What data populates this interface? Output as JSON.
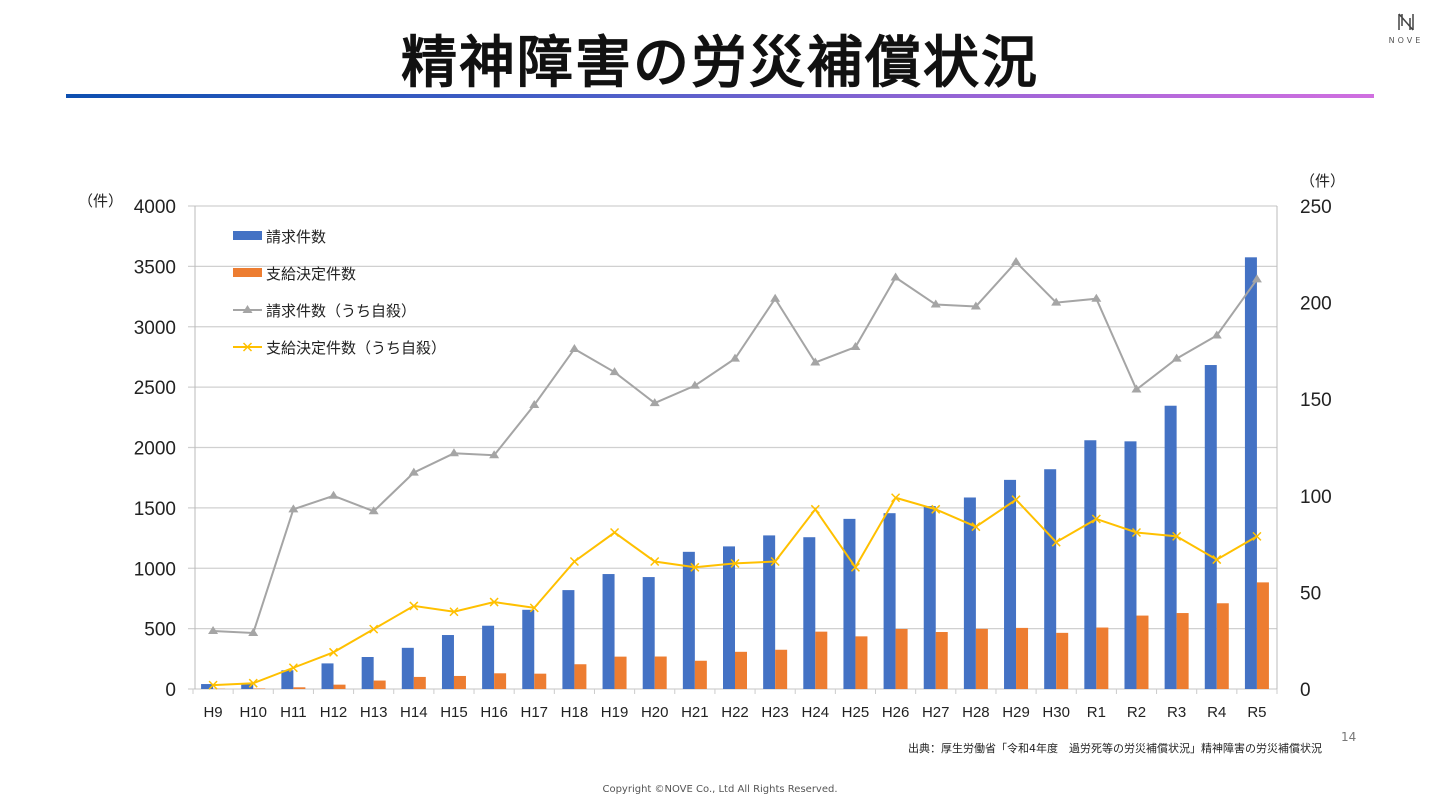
{
  "title": "精神障害の労災補償状況",
  "logo": {
    "text": "NOVE"
  },
  "source": "出典：厚生労働省「令和4年度　過労死等の労災補償状況」精神障害の労災補償状況",
  "page_number": "14",
  "copyright": "Copyright ©NOVE Co., Ltd All Rights Reserved.",
  "chart_data": {
    "type": "bar+line",
    "y_left": {
      "unit": "（件）",
      "range": [
        0,
        4000
      ],
      "ticks": [
        0,
        500,
        1000,
        1500,
        2000,
        2500,
        3000,
        3500,
        4000
      ]
    },
    "y_right": {
      "unit": "（件）",
      "range": [
        0,
        250
      ],
      "ticks": [
        0,
        50,
        100,
        150,
        200,
        250
      ]
    },
    "grid": true,
    "legend": "top-left",
    "categories": [
      "H9",
      "H10",
      "H11",
      "H12",
      "H13",
      "H14",
      "H15",
      "H16",
      "H17",
      "H18",
      "H19",
      "H20",
      "H21",
      "H22",
      "H23",
      "H24",
      "H25",
      "H26",
      "H27",
      "H28",
      "H29",
      "H30",
      "R1",
      "R2",
      "R3",
      "R4",
      "R5"
    ],
    "series": [
      {
        "name": "請求件数",
        "type": "bar",
        "axis": "left",
        "color": "#4472c4",
        "values": [
          41,
          42,
          155,
          212,
          265,
          341,
          447,
          524,
          656,
          819,
          952,
          927,
          1136,
          1181,
          1272,
          1257,
          1409,
          1456,
          1515,
          1586,
          1732,
          1820,
          2060,
          2051,
          2346,
          2683,
          3575
        ]
      },
      {
        "name": "支給決定件数",
        "type": "bar",
        "axis": "left",
        "color": "#ed7d31",
        "values": [
          2,
          4,
          14,
          36,
          70,
          100,
          108,
          130,
          127,
          205,
          268,
          269,
          234,
          308,
          325,
          475,
          436,
          497,
          472,
          498,
          506,
          465,
          509,
          608,
          629,
          710,
          883
        ]
      },
      {
        "name": "請求件数（うち自殺）",
        "type": "line",
        "marker": "triangle",
        "axis": "right",
        "color": "#a5a5a5",
        "values": [
          30,
          29,
          93,
          100,
          92,
          112,
          122,
          121,
          147,
          176,
          164,
          148,
          157,
          171,
          202,
          169,
          177,
          213,
          199,
          198,
          221,
          200,
          202,
          155,
          171,
          183,
          212
        ]
      },
      {
        "name": "支給決定件数（うち自殺）",
        "type": "line",
        "marker": "x",
        "axis": "right",
        "color": "#ffc000",
        "values": [
          2,
          3,
          11,
          19,
          31,
          43,
          40,
          45,
          42,
          66,
          81,
          66,
          63,
          65,
          66,
          93,
          63,
          99,
          93,
          84,
          98,
          76,
          88,
          81,
          79,
          67,
          79
        ]
      }
    ]
  }
}
